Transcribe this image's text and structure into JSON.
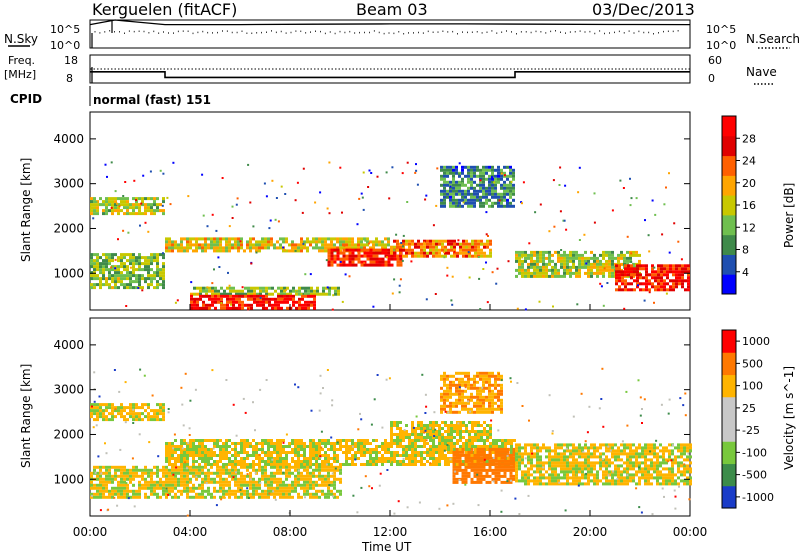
{
  "header": {
    "station": "Kerguelen (fitACF)",
    "beam": "Beam 03",
    "date": "03/Dec/2013"
  },
  "strips": {
    "nsky_label": "N.Sky",
    "nsky_ticks": [
      "10^5",
      "10^0"
    ],
    "nsearch_label": "N.Search",
    "nsearch_ticks": [
      "10^5",
      "10^0"
    ],
    "freq_label": "Freq.",
    "freq_unit": "[MHz]",
    "freq_ticks": [
      "18",
      "8"
    ],
    "nave_label": "Nave",
    "nave_ticks": [
      "60",
      "0"
    ],
    "cpid_label": "CPID",
    "cpid_value": "normal (fast) 151"
  },
  "colors": {
    "power_scale": [
      "#0000ff",
      "#1f4fb0",
      "#3f8a4a",
      "#6fbf4f",
      "#c8c800",
      "#ffa500",
      "#ff6000",
      "#e00000",
      "#ff0000"
    ],
    "velocity_scale": [
      "#1a3cc8",
      "#3c8c4a",
      "#78c83c",
      "#c8c8c8",
      "#c8c8c8",
      "#ffb400",
      "#ff7800",
      "#ff0000"
    ],
    "ground_scatter": "#c0c0b8"
  },
  "chart_data": [
    {
      "type": "line",
      "title": "N.Sky / N.Search",
      "x": [
        "00:00",
        "01:00",
        "03:00",
        "06:00",
        "09:00",
        "12:00",
        "15:00",
        "18:00",
        "21:00",
        "24:00"
      ],
      "series": [
        {
          "name": "N.Sky",
          "values": [
            15000,
            100000,
            15000,
            15000,
            18000,
            20000,
            20000,
            18000,
            16000,
            15000
          ]
        }
      ],
      "ylim": [
        1,
        100000
      ]
    },
    {
      "type": "line",
      "title": "Freq. / Nave",
      "x": [
        "00:00",
        "03:00",
        "03:00",
        "17:00",
        "17:00",
        "24:00"
      ],
      "series": [
        {
          "name": "Freq.",
          "values": [
            12,
            12,
            10,
            10,
            12,
            12
          ]
        },
        {
          "name": "Nave",
          "values": [
            38,
            38,
            38,
            38,
            38,
            38
          ]
        }
      ],
      "ylim": [
        8,
        18
      ]
    },
    {
      "type": "heatmap",
      "title": "Power",
      "xlabel": "Time UT",
      "ylabel": "Slant Range [km]",
      "x_ticks": [
        "00:00",
        "04:00",
        "08:00",
        "12:00",
        "16:00",
        "20:00",
        "00:00"
      ],
      "xlim": [
        0,
        24
      ],
      "y_ticks": [
        "1000",
        "2000",
        "3000",
        "4000"
      ],
      "ylim": [
        180,
        4600
      ],
      "colorbar_label": "Power [dB]",
      "colorbar_ticks": [
        "4",
        "8",
        "12",
        "16",
        "20",
        "24",
        "28"
      ],
      "clim": [
        0,
        30
      ],
      "regions": [
        {
          "t": [
            0,
            3
          ],
          "r": [
            2350,
            2700
          ],
          "level": 14
        },
        {
          "t": [
            0,
            3
          ],
          "r": [
            700,
            1450
          ],
          "level": 12
        },
        {
          "t": [
            3,
            12
          ],
          "r": [
            1500,
            1800
          ],
          "level": 16
        },
        {
          "t": [
            4,
            10
          ],
          "r": [
            500,
            700
          ],
          "level": 12
        },
        {
          "t": [
            4,
            9
          ],
          "r": [
            220,
            520
          ],
          "level": 26
        },
        {
          "t": [
            9.5,
            12.5
          ],
          "r": [
            1200,
            1550
          ],
          "level": 25
        },
        {
          "t": [
            12,
            16
          ],
          "r": [
            1400,
            1750
          ],
          "level": 20
        },
        {
          "t": [
            14,
            17
          ],
          "r": [
            2500,
            3400
          ],
          "level": 8
        },
        {
          "t": [
            17,
            22
          ],
          "r": [
            900,
            1500
          ],
          "level": 14
        },
        {
          "t": [
            21,
            24
          ],
          "r": [
            600,
            1200
          ],
          "level": 25
        }
      ]
    },
    {
      "type": "heatmap",
      "title": "Velocity",
      "xlabel": "Time UT",
      "ylabel": "Slant Range [km]",
      "x_ticks": [
        "00:00",
        "04:00",
        "08:00",
        "12:00",
        "16:00",
        "20:00",
        "00:00"
      ],
      "xlim": [
        0,
        24
      ],
      "y_ticks": [
        "1000",
        "2000",
        "3000",
        "4000"
      ],
      "ylim": [
        180,
        4600
      ],
      "colorbar_label": "Velocity [m s^-1]",
      "colorbar_ticks": [
        "1000",
        "500",
        "100",
        "25",
        "-25",
        "-100",
        "-500",
        "-1000"
      ],
      "clim": [
        -1000,
        1000
      ],
      "regions": [
        {
          "t": [
            0,
            3
          ],
          "r": [
            2300,
            2700
          ],
          "level": 0
        },
        {
          "t": [
            3,
            17
          ],
          "r": [
            1300,
            1900
          ],
          "level": 0
        },
        {
          "t": [
            0,
            10
          ],
          "r": [
            600,
            1300
          ],
          "level": 0
        },
        {
          "t": [
            12,
            16
          ],
          "r": [
            1900,
            2300
          ],
          "level": 0
        },
        {
          "t": [
            14.5,
            17
          ],
          "r": [
            900,
            1700
          ],
          "level": -300
        },
        {
          "t": [
            17,
            24
          ],
          "r": [
            900,
            1800
          ],
          "level": 0
        },
        {
          "t": [
            14,
            16.5
          ],
          "r": [
            2500,
            3400
          ],
          "level": -80
        }
      ]
    }
  ]
}
